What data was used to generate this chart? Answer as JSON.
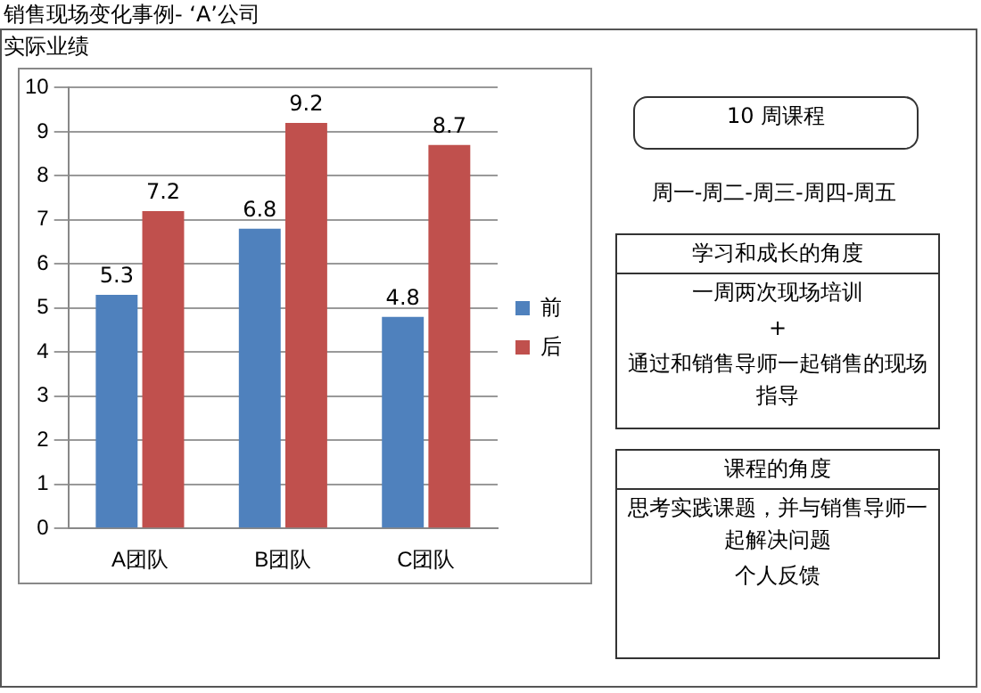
{
  "chart_data": {
    "type": "bar",
    "title": "销售现场变化事例- ‘A’公司",
    "subtitle": "实际业绩",
    "categories": [
      "A团队",
      "B团队",
      "C团队"
    ],
    "series": [
      {
        "name": "前",
        "color": "#4f81bd",
        "values": [
          5.3,
          6.8,
          4.8
        ]
      },
      {
        "name": "后",
        "color": "#c0504d",
        "values": [
          7.2,
          9.2,
          8.7
        ]
      }
    ],
    "ylim": [
      0,
      10
    ],
    "yticks": [
      0,
      1,
      2,
      3,
      4,
      5,
      6,
      7,
      8,
      9,
      10
    ],
    "grid": "y",
    "legend": "right",
    "data_labels": true,
    "annotations": [
      "10 周课程",
      "周一-周二-周三-周四-周五",
      "学习和成长的角度",
      "一周两次现场培训",
      "+",
      "通过和销售导师一起销售的现场指导",
      "课程的角度",
      "思考实践课题，并与销售导师一起解决问题",
      "个人反馈"
    ]
  }
}
